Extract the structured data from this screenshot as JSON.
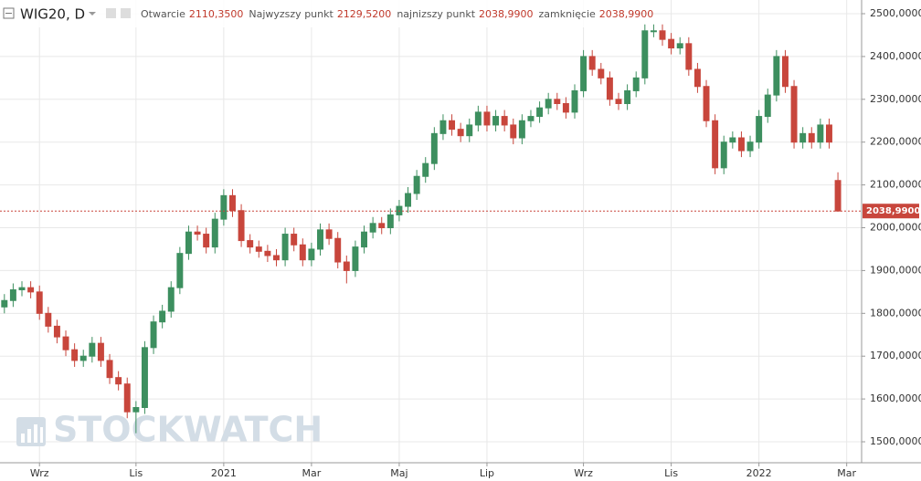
{
  "chart_data": {
    "type": "candlestick",
    "title": "WIG20, D",
    "header": [
      {
        "label": "Otwarcie",
        "value": "2110,3500"
      },
      {
        "label": "Najwyzszy punkt",
        "value": "2129,5200"
      },
      {
        "label": "najnizszy punkt",
        "value": "2038,9900"
      },
      {
        "label": "zamknięcie",
        "value": "2038,9900"
      }
    ],
    "watermark": "STOCKWATCH",
    "up_color": "#3d8f5f",
    "down_color": "#c8463c",
    "open": [
      1815,
      1830,
      1855,
      1860,
      1850,
      1800,
      1770,
      1745,
      1715,
      1690,
      1700,
      1730,
      1690,
      1650,
      1635,
      1570,
      1580,
      1720,
      1780,
      1805,
      1860,
      1940,
      1990,
      1985,
      1955,
      2020,
      2075,
      2040,
      1970,
      1955,
      1945,
      1935,
      1925,
      1985,
      1960,
      1925,
      1950,
      1995,
      1975,
      1920,
      1900,
      1955,
      1990,
      2010,
      2000,
      2030,
      2050,
      2080,
      2120,
      2150,
      2220,
      2250,
      2230,
      2215,
      2240,
      2270,
      2240,
      2260,
      2240,
      2210,
      2250,
      2260,
      2280,
      2300,
      2290,
      2270,
      2320,
      2400,
      2370,
      2350,
      2300,
      2290,
      2320,
      2350,
      2460,
      2460,
      2440,
      2420,
      2430,
      2370,
      2330,
      2250,
      2140,
      2200,
      2210,
      2180,
      2200,
      2260,
      2310,
      2400,
      2330,
      2200,
      2220,
      2200,
      2240,
      2110.35
    ],
    "high": [
      1845,
      1870,
      1875,
      1875,
      1865,
      1815,
      1785,
      1760,
      1730,
      1715,
      1745,
      1745,
      1705,
      1665,
      1650,
      1595,
      1735,
      1795,
      1820,
      1875,
      1955,
      2005,
      2005,
      2000,
      2035,
      2090,
      2090,
      2055,
      1985,
      1970,
      1960,
      1950,
      2000,
      2000,
      1975,
      1965,
      2010,
      2010,
      1990,
      1935,
      1970,
      2005,
      2025,
      2025,
      2045,
      2065,
      2095,
      2135,
      2165,
      2235,
      2265,
      2265,
      2245,
      2255,
      2285,
      2285,
      2275,
      2275,
      2255,
      2265,
      2275,
      2295,
      2315,
      2315,
      2305,
      2335,
      2415,
      2415,
      2385,
      2365,
      2315,
      2335,
      2365,
      2475,
      2475,
      2475,
      2455,
      2445,
      2445,
      2385,
      2345,
      2265,
      2215,
      2225,
      2225,
      2215,
      2275,
      2325,
      2415,
      2415,
      2345,
      2235,
      2235,
      2255,
      2255,
      2129.52
    ],
    "low": [
      1800,
      1815,
      1840,
      1835,
      1785,
      1755,
      1730,
      1700,
      1675,
      1675,
      1685,
      1675,
      1635,
      1620,
      1555,
      1520,
      1565,
      1705,
      1765,
      1790,
      1845,
      1925,
      1970,
      1940,
      1940,
      2005,
      2025,
      1955,
      1940,
      1930,
      1920,
      1910,
      1910,
      1945,
      1910,
      1910,
      1935,
      1960,
      1905,
      1870,
      1885,
      1940,
      1975,
      1985,
      1985,
      2015,
      2035,
      2065,
      2105,
      2135,
      2205,
      2215,
      2200,
      2200,
      2225,
      2225,
      2225,
      2225,
      2195,
      2195,
      2235,
      2245,
      2265,
      2275,
      2255,
      2255,
      2305,
      2355,
      2335,
      2285,
      2275,
      2275,
      2305,
      2335,
      2445,
      2425,
      2405,
      2405,
      2355,
      2315,
      2235,
      2125,
      2125,
      2185,
      2165,
      2165,
      2185,
      2245,
      2295,
      2315,
      2185,
      2185,
      2185,
      2185,
      2185,
      2038.99
    ],
    "close": [
      1830,
      1855,
      1860,
      1850,
      1800,
      1770,
      1745,
      1715,
      1690,
      1700,
      1730,
      1690,
      1650,
      1635,
      1570,
      1580,
      1720,
      1780,
      1805,
      1860,
      1940,
      1990,
      1985,
      1955,
      2020,
      2075,
      2040,
      1970,
      1955,
      1945,
      1935,
      1925,
      1985,
      1960,
      1925,
      1950,
      1995,
      1975,
      1920,
      1900,
      1955,
      1990,
      2010,
      2000,
      2030,
      2050,
      2080,
      2120,
      2150,
      2220,
      2250,
      2230,
      2215,
      2240,
      2270,
      2240,
      2260,
      2240,
      2210,
      2250,
      2260,
      2280,
      2300,
      2290,
      2270,
      2320,
      2400,
      2370,
      2350,
      2300,
      2290,
      2320,
      2350,
      2460,
      2460,
      2440,
      2420,
      2430,
      2370,
      2330,
      2250,
      2140,
      2200,
      2210,
      2180,
      2200,
      2260,
      2310,
      2400,
      2330,
      2200,
      2220,
      2200,
      2240,
      2200,
      2038.99
    ],
    "xlim": [
      -0.5,
      97.7
    ],
    "xticks": [
      {
        "value": 4,
        "label": "Wrz"
      },
      {
        "value": 15,
        "label": "Lis"
      },
      {
        "value": 25,
        "label": "2021"
      },
      {
        "value": 35,
        "label": "Mar"
      },
      {
        "value": 45,
        "label": "Maj"
      },
      {
        "value": 55,
        "label": "Lip"
      },
      {
        "value": 66,
        "label": "Wrz"
      },
      {
        "value": 76,
        "label": "Lis"
      },
      {
        "value": 86,
        "label": "2022"
      },
      {
        "value": 96,
        "label": "Mar"
      }
    ],
    "ylim": [
      1451,
      2532
    ],
    "yticks": [
      {
        "value": 1500,
        "label": "1500,0000"
      },
      {
        "value": 1600,
        "label": "1600,0000"
      },
      {
        "value": 1700,
        "label": "1700,0000"
      },
      {
        "value": 1800,
        "label": "1800,0000"
      },
      {
        "value": 1900,
        "label": "1900,0000"
      },
      {
        "value": 2000,
        "label": "2000,0000"
      },
      {
        "value": 2100,
        "label": "2100,0000"
      },
      {
        "value": 2200,
        "label": "2200,0000"
      },
      {
        "value": 2300,
        "label": "2300,0000"
      },
      {
        "value": 2400,
        "label": "2400,0000"
      },
      {
        "value": 2500,
        "label": "2500,0000"
      }
    ],
    "last_price": {
      "value": 2038.99,
      "label": "2038,9900"
    },
    "grid": true
  }
}
